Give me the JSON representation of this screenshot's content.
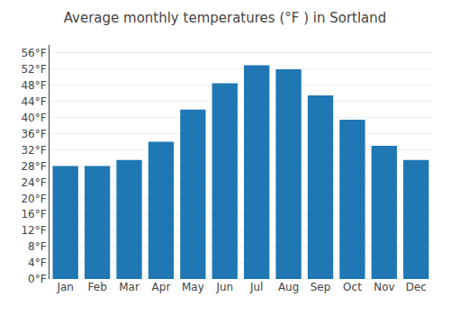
{
  "chart_data": {
    "type": "bar",
    "title": "Average monthly temperatures (°F ) in Sortland",
    "categories": [
      "Jan",
      "Feb",
      "Mar",
      "Apr",
      "May",
      "Jun",
      "Jul",
      "Aug",
      "Sep",
      "Oct",
      "Nov",
      "Dec"
    ],
    "values": [
      28,
      28,
      29.5,
      34,
      42,
      48.5,
      53,
      52,
      45.5,
      39.5,
      33,
      29.5
    ],
    "ylim": [
      0,
      58
    ],
    "yticks": [
      {
        "value": 0,
        "label": "0°F"
      },
      {
        "value": 4,
        "label": "4°F"
      },
      {
        "value": 8,
        "label": "8°F"
      },
      {
        "value": 12,
        "label": "12°F"
      },
      {
        "value": 16,
        "label": "16°F"
      },
      {
        "value": 20,
        "label": "20°F"
      },
      {
        "value": 24,
        "label": "24°F"
      },
      {
        "value": 28,
        "label": "28°F"
      },
      {
        "value": 32,
        "label": "32°F"
      },
      {
        "value": 36,
        "label": "36°F"
      },
      {
        "value": 40,
        "label": "40°F"
      },
      {
        "value": 44,
        "label": "44°F"
      },
      {
        "value": 48,
        "label": "48°F"
      },
      {
        "value": 52,
        "label": "52°F"
      },
      {
        "value": 56,
        "label": "56°F"
      }
    ],
    "grid": true
  }
}
